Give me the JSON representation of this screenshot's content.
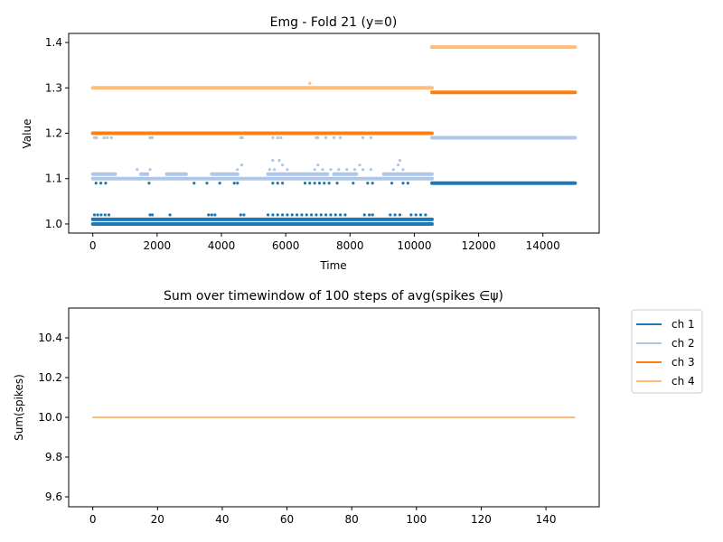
{
  "chart_data": [
    {
      "type": "scatter",
      "title": "Emg - Fold 21 (y=0)",
      "xlabel": "Time",
      "ylabel": "Value",
      "xlim": [
        -750,
        15750
      ],
      "ylim": [
        0.98,
        1.42
      ],
      "xticks": [
        0,
        2000,
        4000,
        6000,
        8000,
        10000,
        12000,
        14000
      ],
      "xtick_labels": [
        "0",
        "2000",
        "4000",
        "6000",
        "8000",
        "10000",
        "12000",
        "14000"
      ],
      "yticks": [
        1.0,
        1.1,
        1.2,
        1.3,
        1.4
      ],
      "ytick_labels": [
        "1.0",
        "1.1",
        "1.2",
        "1.3",
        "1.4"
      ],
      "grid": false,
      "series": [
        {
          "color": "#1f77b4",
          "segments": [
            {
              "x0": 0,
              "x1": 10550,
              "y": 1.0
            },
            {
              "x0": 0,
              "x1": 10550,
              "y": 1.01
            },
            {
              "x0": 10550,
              "x1": 15000,
              "y": 1.09
            }
          ],
          "points": [
            {
              "x": 50,
              "y": 1.02
            },
            {
              "x": 150,
              "y": 1.02
            },
            {
              "x": 260,
              "y": 1.02
            },
            {
              "x": 380,
              "y": 1.02
            },
            {
              "x": 500,
              "y": 1.02
            },
            {
              "x": 100,
              "y": 1.09
            },
            {
              "x": 250,
              "y": 1.09
            },
            {
              "x": 400,
              "y": 1.09
            },
            {
              "x": 1780,
              "y": 1.02
            },
            {
              "x": 1850,
              "y": 1.02
            },
            {
              "x": 1750,
              "y": 1.09
            },
            {
              "x": 2400,
              "y": 1.02
            },
            {
              "x": 3600,
              "y": 1.02
            },
            {
              "x": 3700,
              "y": 1.02
            },
            {
              "x": 3800,
              "y": 1.02
            },
            {
              "x": 3150,
              "y": 1.09
            },
            {
              "x": 3550,
              "y": 1.09
            },
            {
              "x": 3950,
              "y": 1.09
            },
            {
              "x": 4400,
              "y": 1.09
            },
            {
              "x": 4500,
              "y": 1.09
            },
            {
              "x": 4600,
              "y": 1.02
            },
            {
              "x": 4700,
              "y": 1.02
            },
            {
              "x": 5450,
              "y": 1.02
            },
            {
              "x": 5600,
              "y": 1.02
            },
            {
              "x": 5750,
              "y": 1.02
            },
            {
              "x": 5900,
              "y": 1.02
            },
            {
              "x": 6050,
              "y": 1.02
            },
            {
              "x": 6200,
              "y": 1.02
            },
            {
              "x": 6350,
              "y": 1.02
            },
            {
              "x": 6500,
              "y": 1.02
            },
            {
              "x": 6650,
              "y": 1.02
            },
            {
              "x": 6800,
              "y": 1.02
            },
            {
              "x": 6950,
              "y": 1.02
            },
            {
              "x": 7100,
              "y": 1.02
            },
            {
              "x": 7250,
              "y": 1.02
            },
            {
              "x": 7400,
              "y": 1.02
            },
            {
              "x": 7550,
              "y": 1.02
            },
            {
              "x": 7700,
              "y": 1.02
            },
            {
              "x": 7850,
              "y": 1.02
            },
            {
              "x": 5600,
              "y": 1.09
            },
            {
              "x": 5750,
              "y": 1.09
            },
            {
              "x": 5900,
              "y": 1.09
            },
            {
              "x": 6600,
              "y": 1.09
            },
            {
              "x": 6750,
              "y": 1.09
            },
            {
              "x": 6900,
              "y": 1.09
            },
            {
              "x": 7050,
              "y": 1.09
            },
            {
              "x": 7200,
              "y": 1.09
            },
            {
              "x": 7350,
              "y": 1.09
            },
            {
              "x": 7600,
              "y": 1.09
            },
            {
              "x": 8100,
              "y": 1.09
            },
            {
              "x": 8550,
              "y": 1.09
            },
            {
              "x": 8700,
              "y": 1.09
            },
            {
              "x": 8450,
              "y": 1.02
            },
            {
              "x": 8600,
              "y": 1.02
            },
            {
              "x": 8700,
              "y": 1.02
            },
            {
              "x": 9250,
              "y": 1.02
            },
            {
              "x": 9400,
              "y": 1.02
            },
            {
              "x": 9550,
              "y": 1.02
            },
            {
              "x": 9900,
              "y": 1.02
            },
            {
              "x": 10050,
              "y": 1.02
            },
            {
              "x": 10200,
              "y": 1.02
            },
            {
              "x": 10350,
              "y": 1.02
            },
            {
              "x": 9300,
              "y": 1.09
            },
            {
              "x": 9650,
              "y": 1.09
            },
            {
              "x": 9800,
              "y": 1.09
            }
          ]
        },
        {
          "color": "#aec7e8",
          "segments": [
            {
              "x0": 0,
              "x1": 10550,
              "y": 1.1
            },
            {
              "x0": 0,
              "x1": 700,
              "y": 1.11
            },
            {
              "x0": 1500,
              "y": 1.11,
              "x1": 1700
            },
            {
              "x0": 2300,
              "x1": 2900,
              "y": 1.11
            },
            {
              "x0": 3700,
              "x1": 4500,
              "y": 1.11
            },
            {
              "x0": 5450,
              "x1": 7300,
              "y": 1.11
            },
            {
              "x0": 7500,
              "x1": 8200,
              "y": 1.11
            },
            {
              "x0": 9050,
              "x1": 10550,
              "y": 1.11
            },
            {
              "x0": 10550,
              "x1": 15000,
              "y": 1.19
            }
          ],
          "points": [
            {
              "x": 50,
              "y": 1.19
            },
            {
              "x": 120,
              "y": 1.19
            },
            {
              "x": 350,
              "y": 1.19
            },
            {
              "x": 450,
              "y": 1.19
            },
            {
              "x": 580,
              "y": 1.19
            },
            {
              "x": 1780,
              "y": 1.19
            },
            {
              "x": 1850,
              "y": 1.19
            },
            {
              "x": 1380,
              "y": 1.12
            },
            {
              "x": 1780,
              "y": 1.12
            },
            {
              "x": 4600,
              "y": 1.19
            },
            {
              "x": 4650,
              "y": 1.19
            },
            {
              "x": 4500,
              "y": 1.12
            },
            {
              "x": 4630,
              "y": 1.13
            },
            {
              "x": 5600,
              "y": 1.19
            },
            {
              "x": 5750,
              "y": 1.19
            },
            {
              "x": 5850,
              "y": 1.19
            },
            {
              "x": 5600,
              "y": 1.14
            },
            {
              "x": 5800,
              "y": 1.14
            },
            {
              "x": 5500,
              "y": 1.12
            },
            {
              "x": 5650,
              "y": 1.12
            },
            {
              "x": 5900,
              "y": 1.13
            },
            {
              "x": 6050,
              "y": 1.12
            },
            {
              "x": 6950,
              "y": 1.19
            },
            {
              "x": 7000,
              "y": 1.19
            },
            {
              "x": 7250,
              "y": 1.19
            },
            {
              "x": 7500,
              "y": 1.19
            },
            {
              "x": 7700,
              "y": 1.19
            },
            {
              "x": 6900,
              "y": 1.12
            },
            {
              "x": 7000,
              "y": 1.13
            },
            {
              "x": 7150,
              "y": 1.12
            },
            {
              "x": 7400,
              "y": 1.12
            },
            {
              "x": 7650,
              "y": 1.12
            },
            {
              "x": 7900,
              "y": 1.12
            },
            {
              "x": 8150,
              "y": 1.12
            },
            {
              "x": 8400,
              "y": 1.12
            },
            {
              "x": 8650,
              "y": 1.12
            },
            {
              "x": 8300,
              "y": 1.13
            },
            {
              "x": 8650,
              "y": 1.19
            },
            {
              "x": 8400,
              "y": 1.19
            },
            {
              "x": 9350,
              "y": 1.12
            },
            {
              "x": 9500,
              "y": 1.13
            },
            {
              "x": 9550,
              "y": 1.14
            },
            {
              "x": 9650,
              "y": 1.12
            }
          ]
        },
        {
          "color": "#ff7f0e",
          "segments": [
            {
              "x0": 0,
              "x1": 10550,
              "y": 1.2
            },
            {
              "x0": 10550,
              "x1": 15000,
              "y": 1.29
            }
          ],
          "points": []
        },
        {
          "color": "#ffbb78",
          "segments": [
            {
              "x0": 0,
              "x1": 10550,
              "y": 1.3
            },
            {
              "x0": 10550,
              "x1": 15000,
              "y": 1.39
            }
          ],
          "points": [
            {
              "x": 6750,
              "y": 1.31
            }
          ]
        }
      ]
    },
    {
      "type": "line",
      "title": "Sum over timewindow of 100 steps of avg(spikes ∈ψ)",
      "xlabel": "",
      "ylabel": "Sum(spikes)",
      "xlim": [
        -7.45,
        156.45
      ],
      "ylim": [
        9.55,
        10.55
      ],
      "xticks": [
        0,
        20,
        40,
        60,
        80,
        100,
        120,
        140
      ],
      "xtick_labels": [
        "0",
        "20",
        "40",
        "60",
        "80",
        "100",
        "120",
        "140"
      ],
      "yticks": [
        9.6,
        9.8,
        10.0,
        10.2,
        10.4
      ],
      "ytick_labels": [
        "9.6",
        "9.8",
        "10.0",
        "10.2",
        "10.4"
      ],
      "grid": false,
      "legend_position": "outside-right",
      "series": [
        {
          "name": "ch 1",
          "color": "#1f77b4",
          "x": [
            0,
            149
          ],
          "values": [
            10.0,
            10.0
          ]
        },
        {
          "name": "ch 2",
          "color": "#aec7e8",
          "x": [
            0,
            149
          ],
          "values": [
            10.0,
            10.0
          ]
        },
        {
          "name": "ch 3",
          "color": "#ff7f0e",
          "x": [
            0,
            149
          ],
          "values": [
            10.0,
            10.0
          ]
        },
        {
          "name": "ch 4",
          "color": "#ffbb78",
          "x": [
            0,
            149
          ],
          "values": [
            10.0,
            10.0
          ]
        }
      ]
    }
  ]
}
